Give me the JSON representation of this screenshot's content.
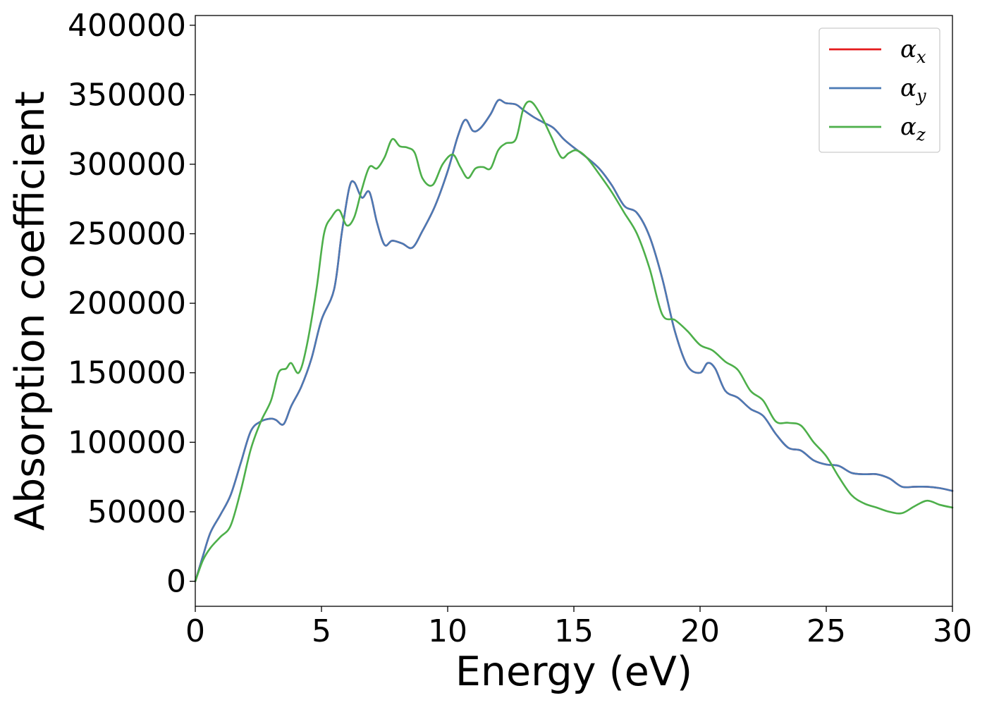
{
  "chart_data": {
    "type": "line",
    "title": "",
    "xlabel": "Energy (eV)",
    "ylabel": "Absorption coefficient",
    "xlim": [
      0,
      30
    ],
    "ylim": [
      -18000,
      407000
    ],
    "xticks": [
      0,
      5,
      10,
      15,
      20,
      25,
      30
    ],
    "yticks": [
      0,
      50000,
      100000,
      150000,
      200000,
      250000,
      300000,
      350000,
      400000
    ],
    "grid": false,
    "legend": "top-right",
    "series": [
      {
        "name": "αx",
        "symbol": "α",
        "subscript": "x",
        "color": "#e41a1c",
        "x": [
          0,
          0.3,
          0.6,
          1.0,
          1.4,
          1.8,
          2.2,
          2.6,
          3.0,
          3.2,
          3.5,
          3.8,
          4.2,
          4.6,
          5.0,
          5.5,
          5.8,
          6.1,
          6.3,
          6.6,
          6.9,
          7.2,
          7.5,
          7.8,
          8.2,
          8.6,
          9.0,
          9.5,
          10.0,
          10.4,
          10.7,
          11.0,
          11.3,
          11.7,
          12.0,
          12.3,
          12.7,
          13.0,
          13.4,
          13.8,
          14.2,
          14.6,
          15.0,
          15.5,
          16.0,
          16.5,
          17.0,
          17.5,
          18.0,
          18.5,
          19.0,
          19.5,
          20.0,
          20.3,
          20.6,
          21.0,
          21.5,
          22.0,
          22.5,
          23.0,
          23.5,
          24.0,
          24.5,
          25.0,
          25.5,
          26.0,
          26.5,
          27.0,
          27.5,
          28.0,
          28.5,
          29.0,
          29.5,
          30.0
        ],
        "y": [
          0,
          18000,
          35000,
          48000,
          62000,
          85000,
          108000,
          115000,
          117000,
          116000,
          113000,
          126000,
          140000,
          160000,
          188000,
          210000,
          250000,
          283000,
          287000,
          276000,
          280000,
          258000,
          242000,
          245000,
          243000,
          240000,
          252000,
          270000,
          295000,
          320000,
          332000,
          324000,
          326000,
          336000,
          346000,
          344000,
          343000,
          339000,
          334000,
          330000,
          326000,
          318000,
          312000,
          305000,
          297000,
          285000,
          270000,
          265000,
          248000,
          218000,
          180000,
          155000,
          150000,
          157000,
          153000,
          137000,
          132000,
          124000,
          119000,
          106000,
          96000,
          94000,
          87000,
          84000,
          83000,
          78000,
          77000,
          77000,
          74000,
          68000,
          68000,
          68000,
          67000,
          65000
        ]
      },
      {
        "name": "αy",
        "symbol": "α",
        "subscript": "y",
        "color": "#4a7ab5",
        "x": [
          0,
          0.3,
          0.6,
          1.0,
          1.4,
          1.8,
          2.2,
          2.6,
          3.0,
          3.2,
          3.5,
          3.8,
          4.2,
          4.6,
          5.0,
          5.5,
          5.8,
          6.1,
          6.3,
          6.6,
          6.9,
          7.2,
          7.5,
          7.8,
          8.2,
          8.6,
          9.0,
          9.5,
          10.0,
          10.4,
          10.7,
          11.0,
          11.3,
          11.7,
          12.0,
          12.3,
          12.7,
          13.0,
          13.4,
          13.8,
          14.2,
          14.6,
          15.0,
          15.5,
          16.0,
          16.5,
          17.0,
          17.5,
          18.0,
          18.5,
          19.0,
          19.5,
          20.0,
          20.3,
          20.6,
          21.0,
          21.5,
          22.0,
          22.5,
          23.0,
          23.5,
          24.0,
          24.5,
          25.0,
          25.5,
          26.0,
          26.5,
          27.0,
          27.5,
          28.0,
          28.5,
          29.0,
          29.5,
          30.0
        ],
        "y": [
          0,
          18000,
          35000,
          48000,
          62000,
          85000,
          108000,
          115000,
          117000,
          116000,
          113000,
          126000,
          140000,
          160000,
          188000,
          210000,
          250000,
          283000,
          287000,
          276000,
          280000,
          258000,
          242000,
          245000,
          243000,
          240000,
          252000,
          270000,
          295000,
          320000,
          332000,
          324000,
          326000,
          336000,
          346000,
          344000,
          343000,
          339000,
          334000,
          330000,
          326000,
          318000,
          312000,
          305000,
          297000,
          285000,
          270000,
          265000,
          248000,
          218000,
          180000,
          155000,
          150000,
          157000,
          153000,
          137000,
          132000,
          124000,
          119000,
          106000,
          96000,
          94000,
          87000,
          84000,
          83000,
          78000,
          77000,
          77000,
          74000,
          68000,
          68000,
          68000,
          67000,
          65000
        ]
      },
      {
        "name": "αz",
        "symbol": "α",
        "subscript": "z",
        "color": "#4daf4a",
        "x": [
          0,
          0.3,
          0.6,
          1.0,
          1.4,
          1.8,
          2.2,
          2.6,
          3.0,
          3.3,
          3.6,
          3.8,
          4.1,
          4.4,
          4.8,
          5.1,
          5.4,
          5.7,
          6.0,
          6.3,
          6.6,
          6.9,
          7.2,
          7.5,
          7.8,
          8.1,
          8.4,
          8.7,
          9.0,
          9.4,
          9.8,
          10.2,
          10.5,
          10.8,
          11.1,
          11.4,
          11.7,
          12.0,
          12.3,
          12.7,
          13.0,
          13.3,
          13.7,
          14.1,
          14.5,
          14.8,
          15.1,
          15.5,
          16.0,
          16.5,
          17.0,
          17.5,
          18.0,
          18.5,
          19.0,
          19.5,
          20.0,
          20.5,
          21.0,
          21.5,
          22.0,
          22.5,
          23.0,
          23.5,
          24.0,
          24.5,
          25.0,
          25.5,
          26.0,
          26.5,
          27.0,
          27.5,
          28.0,
          28.5,
          29.0,
          29.5,
          30.0
        ],
        "y": [
          0,
          15000,
          24000,
          32000,
          40000,
          65000,
          95000,
          115000,
          130000,
          150000,
          153000,
          157000,
          150000,
          168000,
          210000,
          250000,
          262000,
          267000,
          256000,
          262000,
          282000,
          298000,
          297000,
          305000,
          318000,
          313000,
          312000,
          308000,
          290000,
          285000,
          300000,
          307000,
          298000,
          290000,
          297000,
          298000,
          297000,
          310000,
          315000,
          318000,
          340000,
          345000,
          335000,
          320000,
          305000,
          308000,
          310000,
          305000,
          293000,
          280000,
          265000,
          250000,
          225000,
          192000,
          188000,
          180000,
          170000,
          166000,
          158000,
          152000,
          137000,
          130000,
          115000,
          114000,
          112000,
          100000,
          90000,
          75000,
          62000,
          56000,
          53000,
          50000,
          49000,
          54000,
          58000,
          55000,
          53000
        ]
      }
    ]
  }
}
